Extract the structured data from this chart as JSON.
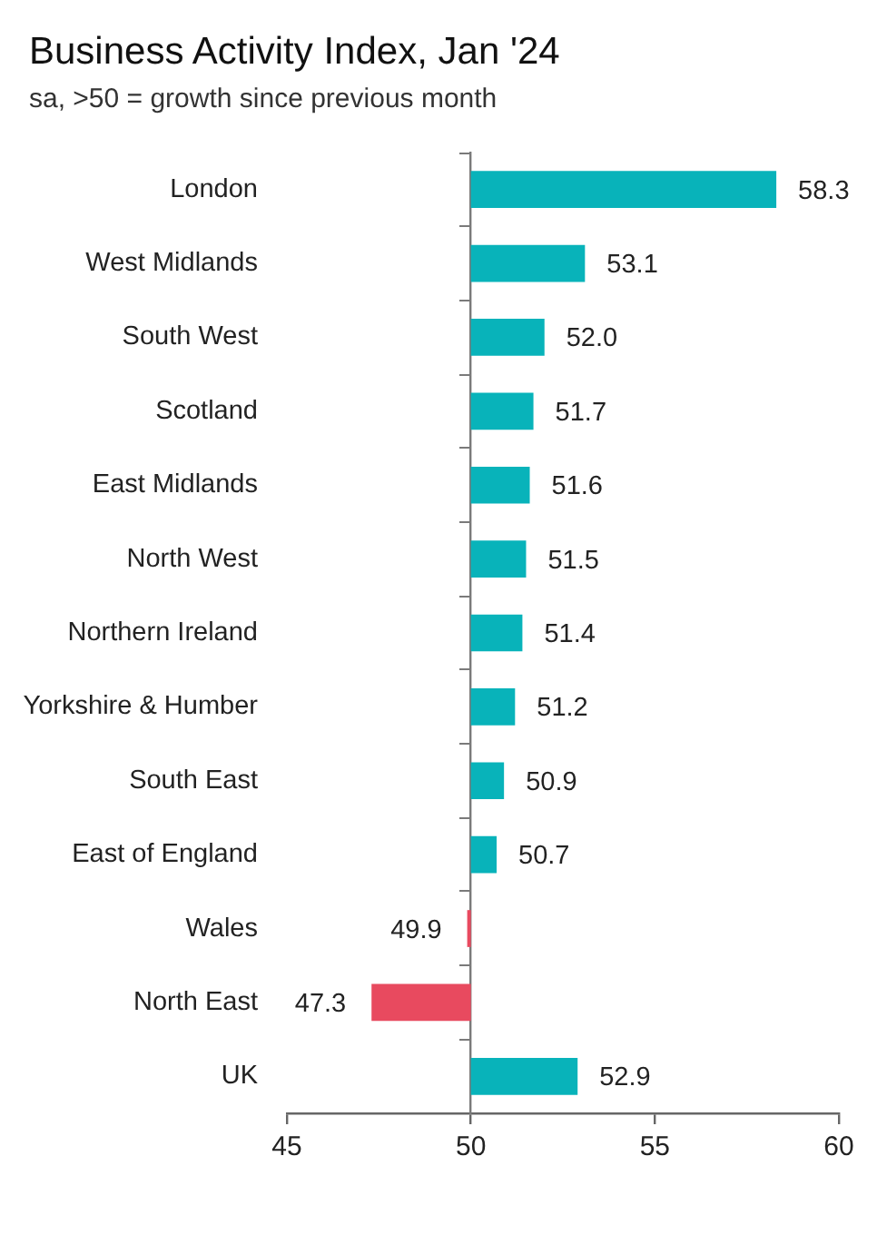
{
  "chart_data": {
    "type": "bar",
    "orientation": "horizontal",
    "title": "Business Activity Index, Jan '24",
    "subtitle": "sa, >50 = growth since previous month",
    "categories": [
      "London",
      "West Midlands",
      "South West",
      "Scotland",
      "East Midlands",
      "North West",
      "Northern Ireland",
      "Yorkshire & Humber",
      "South East",
      "East of England",
      "Wales",
      "North East",
      "UK"
    ],
    "base": [
      50,
      50,
      50,
      50,
      50,
      50,
      50,
      50,
      50,
      50,
      50,
      50,
      50
    ],
    "values": [
      8.3,
      3.1,
      2.0,
      1.7,
      1.6,
      1.5,
      1.4,
      1.2,
      0.9,
      0.7,
      -0.1,
      -2.7,
      2.9
    ],
    "value_labels": [
      "58.3",
      "53.1",
      "52.0",
      "51.7",
      "51.6",
      "51.5",
      "51.4",
      "51.2",
      "50.9",
      "50.7",
      "49.9",
      "47.3",
      "52.9"
    ],
    "colors": [
      "#08b3ba",
      "#08b3ba",
      "#08b3ba",
      "#08b3ba",
      "#08b3ba",
      "#08b3ba",
      "#08b3ba",
      "#08b3ba",
      "#08b3ba",
      "#08b3ba",
      "#e84a5f",
      "#e84a5f",
      "#08b3ba"
    ],
    "xlim": [
      45,
      60
    ],
    "xticks": [
      45,
      50,
      55,
      60
    ],
    "ref_lines": [
      {
        "axis": "x",
        "value": 50,
        "color": "#7a7a7a"
      }
    ]
  }
}
